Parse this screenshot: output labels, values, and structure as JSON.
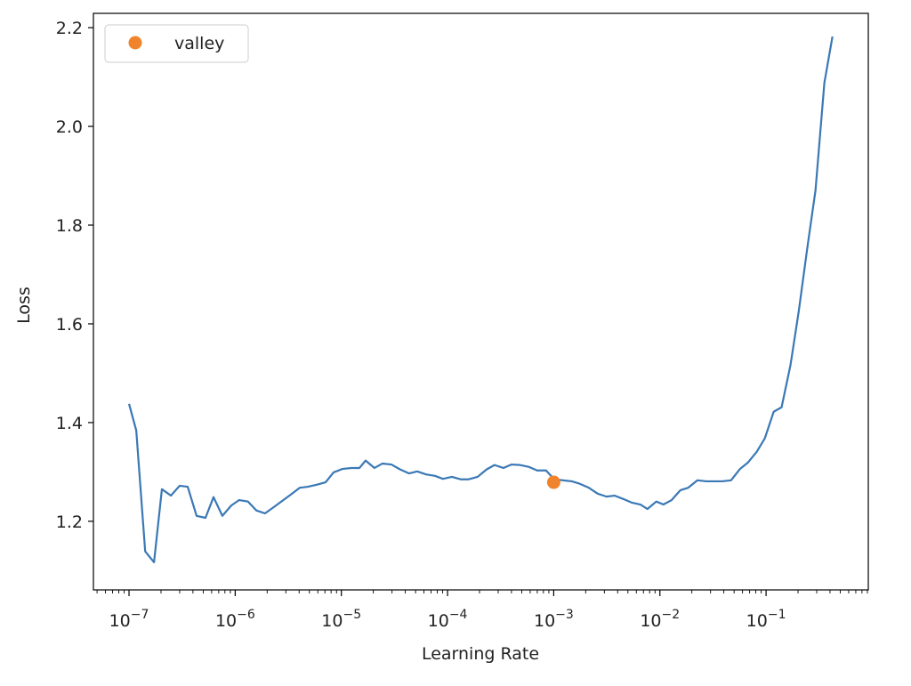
{
  "chart_data": {
    "type": "line",
    "xlabel": "Learning Rate",
    "ylabel": "Loss",
    "xscale": "log",
    "xlim": [
      4.62e-08,
      0.918
    ],
    "ylim": [
      1.061,
      2.229
    ],
    "xticks": [
      {
        "value": 1e-07,
        "label": "10",
        "exponent": "−7"
      },
      {
        "value": 1e-06,
        "label": "10",
        "exponent": "−6"
      },
      {
        "value": 1e-05,
        "label": "10",
        "exponent": "−5"
      },
      {
        "value": 0.0001,
        "label": "10",
        "exponent": "−4"
      },
      {
        "value": 0.001,
        "label": "10",
        "exponent": "−3"
      },
      {
        "value": 0.01,
        "label": "10",
        "exponent": "−2"
      },
      {
        "value": 0.1,
        "label": "10",
        "exponent": "−1"
      }
    ],
    "yticks": [
      1.2,
      1.4,
      1.6,
      1.8,
      {
        "value": 2.0,
        "label": "2.0"
      },
      2.2
    ],
    "minor_ticks": true,
    "legend": "upper left",
    "x": [
      1e-07,
      1.17e-07,
      1.42e-07,
      1.72e-07,
      2.04e-07,
      2.48e-07,
      3e-07,
      3.57e-07,
      4.33e-07,
      5.25e-07,
      6.25e-07,
      7.57e-07,
      9.19e-07,
      1.09e-06,
      1.32e-06,
      1.58e-06,
      1.91e-06,
      2.32e-06,
      2.76e-06,
      3.34e-06,
      4.06e-06,
      4.82e-06,
      5.85e-06,
      7.1e-06,
      8.44e-06,
      1.02e-05,
      1.24e-05,
      1.48e-05,
      1.69e-05,
      2.05e-05,
      2.44e-05,
      2.96e-05,
      3.58e-05,
      4.35e-05,
      5.18e-05,
      6.27e-05,
      7.6e-05,
      9.04e-05,
      0.00011,
      0.000133,
      0.000158,
      0.000192,
      0.000233,
      0.000277,
      0.000336,
      0.000399,
      0.000484,
      0.000587,
      0.000698,
      0.000847,
      0.00101,
      0.00122,
      0.00148,
      0.00176,
      0.00214,
      0.00259,
      0.00314,
      0.00374,
      0.00454,
      0.0054,
      0.00655,
      0.00764,
      0.00925,
      0.0108,
      0.0129,
      0.0156,
      0.0185,
      0.0225,
      0.0273,
      0.0324,
      0.0386,
      0.0468,
      0.0568,
      0.0675,
      0.0818,
      0.0973,
      0.118,
      0.14,
      0.17,
      0.203,
      0.245,
      0.292,
      0.354,
      0.422
    ],
    "series": [
      {
        "color": "#3a78b5",
        "values": [
          1.438,
          1.384,
          1.139,
          1.117,
          1.265,
          1.252,
          1.272,
          1.27,
          1.211,
          1.207,
          1.249,
          1.211,
          1.232,
          1.243,
          1.24,
          1.222,
          1.216,
          1.229,
          1.241,
          1.254,
          1.268,
          1.27,
          1.274,
          1.279,
          1.299,
          1.306,
          1.308,
          1.308,
          1.323,
          1.308,
          1.317,
          1.315,
          1.305,
          1.297,
          1.301,
          1.295,
          1.292,
          1.286,
          1.29,
          1.285,
          1.285,
          1.29,
          1.305,
          1.314,
          1.308,
          1.315,
          1.314,
          1.31,
          1.303,
          1.303,
          1.285,
          1.283,
          1.281,
          1.276,
          1.268,
          1.256,
          1.25,
          1.252,
          1.245,
          1.238,
          1.234,
          1.225,
          1.24,
          1.234,
          1.243,
          1.263,
          1.268,
          1.283,
          1.281,
          1.281,
          1.281,
          1.283,
          1.306,
          1.319,
          1.341,
          1.368,
          1.422,
          1.431,
          1.517,
          1.625,
          1.755,
          1.87,
          2.088,
          2.182
        ]
      },
      {
        "name": "valley",
        "color": "#f0842c",
        "style": "point",
        "x": [
          0.001
        ],
        "values": [
          1.279
        ]
      }
    ]
  }
}
